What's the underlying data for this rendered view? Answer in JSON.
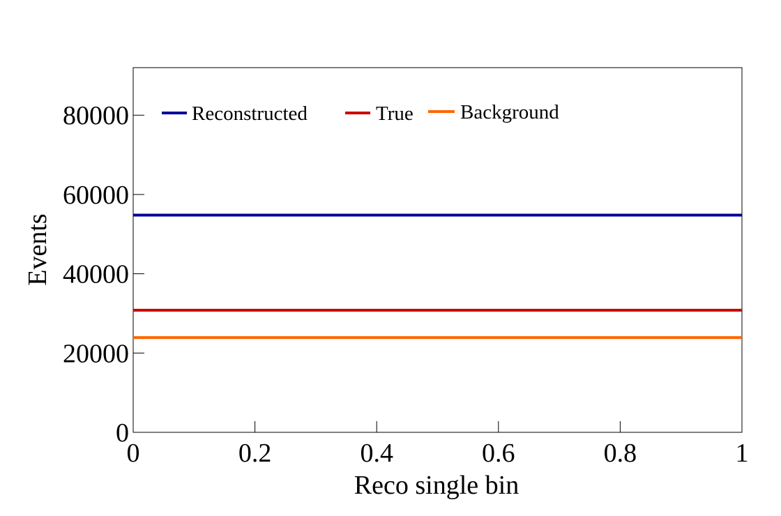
{
  "chart_data": {
    "type": "line",
    "title": "",
    "xlabel": "Reco single bin",
    "ylabel": "Events",
    "xlim": [
      0,
      1
    ],
    "ylim": [
      0,
      92000
    ],
    "xticks": [
      0,
      0.2,
      0.4,
      0.6,
      0.8,
      1
    ],
    "xtick_labels": [
      "0",
      "0.2",
      "0.4",
      "0.6",
      "0.8",
      "1"
    ],
    "yticks": [
      0,
      20000,
      40000,
      60000,
      80000
    ],
    "ytick_labels": [
      "0",
      "20000",
      "40000",
      "60000",
      "80000"
    ],
    "grid": false,
    "legend_position": "top, horizontal",
    "series": [
      {
        "name": "Reconstructed",
        "color": "#000099",
        "x": [
          0,
          1
        ],
        "y": [
          54800,
          54800
        ]
      },
      {
        "name": "True",
        "color": "#cc0000",
        "x": [
          0,
          1
        ],
        "y": [
          30800,
          30800
        ]
      },
      {
        "name": "Background",
        "color": "#ff6600",
        "x": [
          0,
          1
        ],
        "y": [
          23900,
          23900
        ]
      }
    ]
  }
}
